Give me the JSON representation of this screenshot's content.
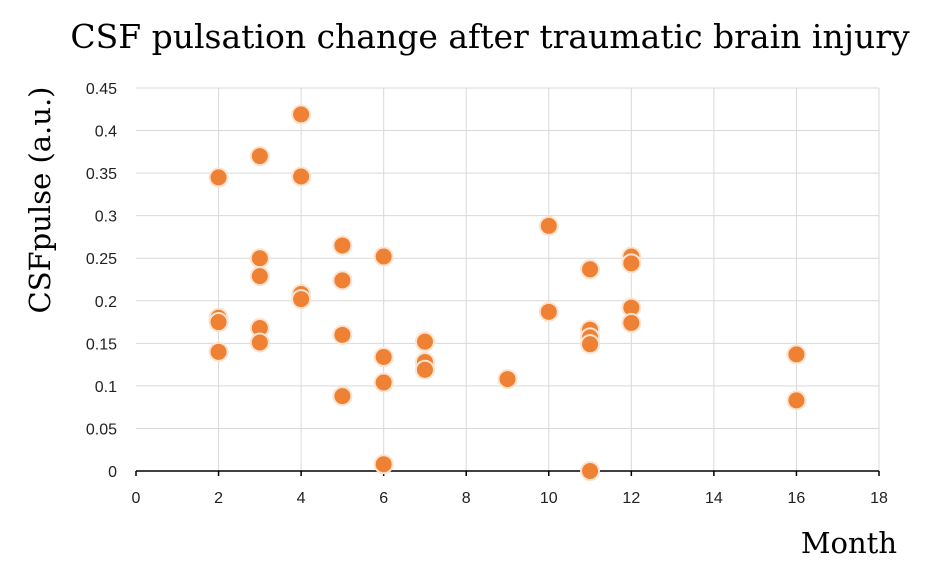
{
  "chart_data": {
    "type": "scatter",
    "title": "CSF pulsation change after traumatic brain injury",
    "xlabel": "Month",
    "ylabel": "CSFpulse (a.u.)",
    "xlim": [
      0,
      18
    ],
    "ylim": [
      0,
      0.45
    ],
    "xticks": [
      0,
      2,
      4,
      6,
      8,
      10,
      12,
      14,
      16,
      18
    ],
    "yticks": [
      0,
      0.05,
      0.1,
      0.15,
      0.2,
      0.25,
      0.3,
      0.35,
      0.4,
      0.45
    ],
    "grid": true,
    "marker_color": "#ee8133",
    "series": [
      {
        "name": "CSFpulse",
        "points": [
          {
            "x": 2,
            "y": 0.345
          },
          {
            "x": 2,
            "y": 0.18
          },
          {
            "x": 2,
            "y": 0.175
          },
          {
            "x": 2,
            "y": 0.14
          },
          {
            "x": 3,
            "y": 0.37
          },
          {
            "x": 3,
            "y": 0.25
          },
          {
            "x": 3,
            "y": 0.229
          },
          {
            "x": 3,
            "y": 0.168
          },
          {
            "x": 3,
            "y": 0.151
          },
          {
            "x": 4,
            "y": 0.419
          },
          {
            "x": 4,
            "y": 0.346
          },
          {
            "x": 4,
            "y": 0.208
          },
          {
            "x": 4,
            "y": 0.202
          },
          {
            "x": 5,
            "y": 0.265
          },
          {
            "x": 5,
            "y": 0.224
          },
          {
            "x": 5,
            "y": 0.16
          },
          {
            "x": 5,
            "y": 0.088
          },
          {
            "x": 6,
            "y": 0.252
          },
          {
            "x": 6,
            "y": 0.134
          },
          {
            "x": 6,
            "y": 0.104
          },
          {
            "x": 6,
            "y": 0.008
          },
          {
            "x": 7,
            "y": 0.152
          },
          {
            "x": 7,
            "y": 0.128
          },
          {
            "x": 7,
            "y": 0.119
          },
          {
            "x": 9,
            "y": 0.108
          },
          {
            "x": 10,
            "y": 0.288
          },
          {
            "x": 10,
            "y": 0.187
          },
          {
            "x": 11,
            "y": 0.237
          },
          {
            "x": 11,
            "y": 0.166
          },
          {
            "x": 11,
            "y": 0.157
          },
          {
            "x": 11,
            "y": 0.149
          },
          {
            "x": 11,
            "y": 0.0
          },
          {
            "x": 12,
            "y": 0.252
          },
          {
            "x": 12,
            "y": 0.244
          },
          {
            "x": 12,
            "y": 0.192
          },
          {
            "x": 12,
            "y": 0.174
          },
          {
            "x": 16,
            "y": 0.137
          },
          {
            "x": 16,
            "y": 0.083
          }
        ]
      }
    ]
  }
}
